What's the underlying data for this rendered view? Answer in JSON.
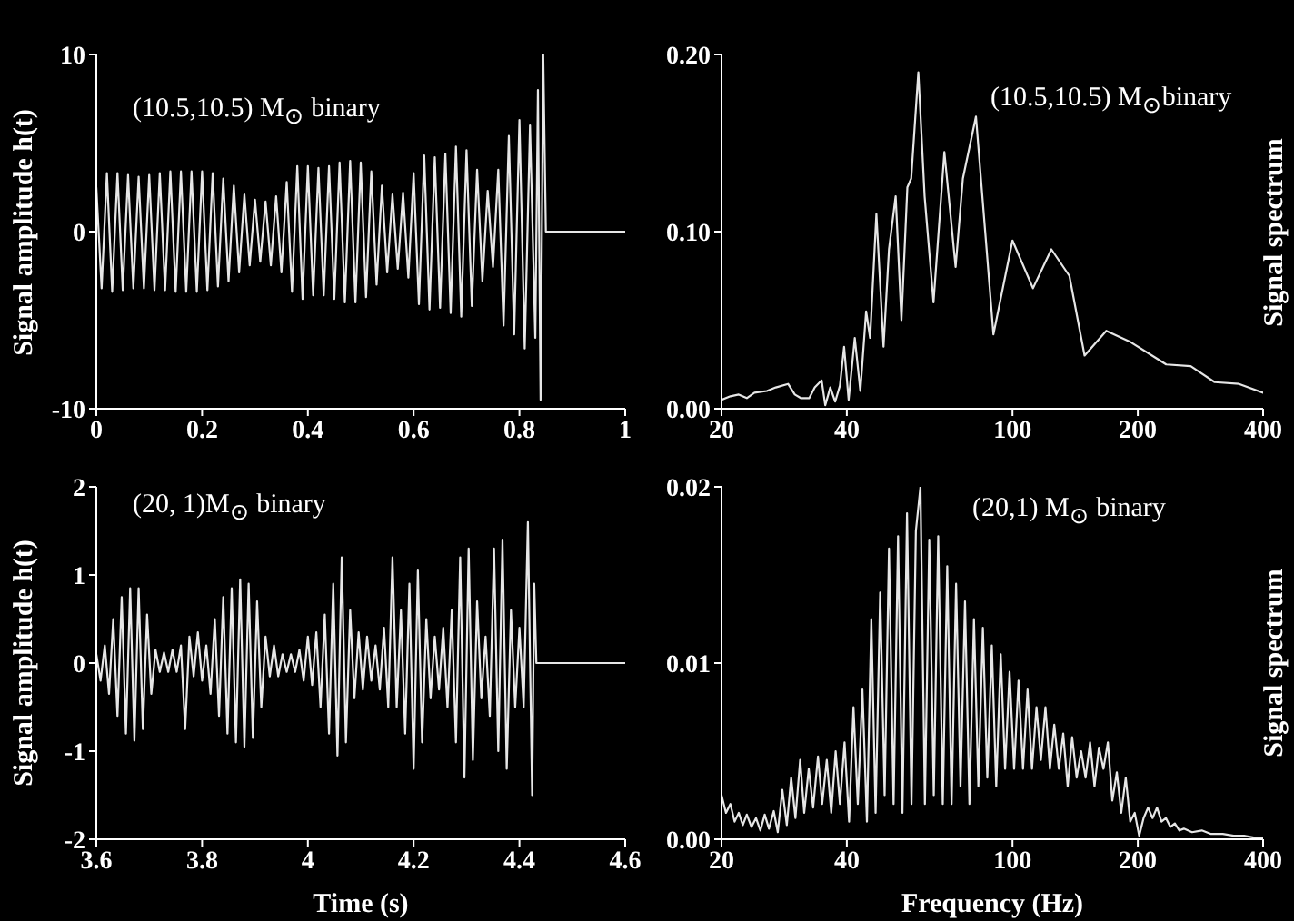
{
  "chart_data": [
    {
      "type": "line",
      "ylabel": "Signal amplitude h(t)",
      "annotations": [
        "(10.5,10.5) M$_{⊙}$ binary"
      ],
      "xlim": [
        0,
        1
      ],
      "xticks": [
        0,
        0.2,
        0.4,
        0.6,
        0.8,
        1
      ],
      "ylim": [
        -10,
        10
      ],
      "yticks": [
        -10,
        0,
        10
      ],
      "marker": "none",
      "series": [
        {
          "color": "#e6e6e6",
          "x": [
            0,
            0.01,
            0.02,
            0.03,
            0.04,
            0.05,
            0.06,
            0.07,
            0.08,
            0.09,
            0.1,
            0.11,
            0.12,
            0.13,
            0.14,
            0.15,
            0.16,
            0.17,
            0.18,
            0.19,
            0.2,
            0.21,
            0.22,
            0.23,
            0.24,
            0.25,
            0.26,
            0.27,
            0.28,
            0.29,
            0.3,
            0.31,
            0.32,
            0.33,
            0.34,
            0.35,
            0.36,
            0.37,
            0.38,
            0.39,
            0.4,
            0.41,
            0.42,
            0.43,
            0.44,
            0.45,
            0.46,
            0.47,
            0.48,
            0.49,
            0.5,
            0.51,
            0.52,
            0.53,
            0.54,
            0.55,
            0.56,
            0.57,
            0.58,
            0.59,
            0.6,
            0.61,
            0.62,
            0.63,
            0.64,
            0.65,
            0.66,
            0.67,
            0.68,
            0.69,
            0.7,
            0.71,
            0.72,
            0.73,
            0.74,
            0.75,
            0.76,
            0.77,
            0.78,
            0.79,
            0.8,
            0.81,
            0.82,
            0.83,
            0.835,
            0.84,
            0.845,
            0.85,
            1
          ],
          "values": [
            2.5,
            -3.2,
            3.3,
            -3.4,
            3.3,
            -3.3,
            3.2,
            -3.2,
            3.1,
            -3.2,
            3.2,
            -3.3,
            3.3,
            -3.3,
            3.4,
            -3.4,
            3.4,
            -3.4,
            3.4,
            -3.4,
            3.4,
            -3.3,
            3.3,
            -3.1,
            3.0,
            -2.8,
            2.6,
            -2.3,
            2.1,
            -1.9,
            1.8,
            -1.7,
            1.7,
            -1.9,
            2.0,
            -2.3,
            2.8,
            -3.4,
            3.7,
            -3.8,
            3.7,
            -3.6,
            3.6,
            -3.6,
            3.7,
            -3.8,
            3.9,
            -4.0,
            4.0,
            -4.0,
            3.9,
            -3.7,
            3.4,
            -3.0,
            2.6,
            -2.3,
            2.1,
            -2.1,
            2.2,
            -2.6,
            3.3,
            -4.1,
            4.3,
            -4.4,
            4.2,
            -4.3,
            4.4,
            -4.6,
            4.8,
            -4.8,
            4.6,
            -4.2,
            3.5,
            -2.8,
            2.3,
            -2.0,
            3.5,
            -5.3,
            5.4,
            -5.8,
            6.3,
            -6.6,
            6.0,
            -6.0,
            8.0,
            -9.5,
            10,
            0,
            0
          ]
        }
      ]
    },
    {
      "type": "line",
      "ylabel": "Signal spectrum",
      "annotations": [
        "(10.5,10.5) M$_{⊙}$binary"
      ],
      "log": "x",
      "xlim": [
        20,
        400
      ],
      "xticks": [
        20,
        40,
        100,
        200,
        400
      ],
      "ylim": [
        0,
        0.2
      ],
      "yticks": [
        {
          "value": 0,
          "label": "0.00"
        },
        {
          "value": 0.1,
          "label": "0.10"
        },
        {
          "value": 0.2,
          "label": "0.20"
        }
      ],
      "marker": "none",
      "series": [
        {
          "color": "#e6e6e6",
          "x": [
            20,
            21,
            22,
            23,
            24,
            25.7,
            27,
            28.9,
            30,
            31,
            32.5,
            33.5,
            34.8,
            35.5,
            36.5,
            37.5,
            38.5,
            39.4,
            40.4,
            41.8,
            43.1,
            44.5,
            45.5,
            47.1,
            49,
            50.5,
            52.4,
            54.1,
            55.9,
            57.1,
            59.4,
            61.5,
            64.6,
            68.6,
            73,
            76,
            81.7,
            90,
            100,
            112,
            124,
            137,
            149,
            168,
            191,
            234,
            268,
            306,
            350,
            400
          ],
          "values": [
            0.005,
            0.007,
            0.008,
            0.006,
            0.009,
            0.01,
            0.012,
            0.014,
            0.008,
            0.006,
            0.006,
            0.012,
            0.016,
            0.002,
            0.012,
            0.004,
            0.013,
            0.035,
            0.005,
            0.04,
            0.01,
            0.055,
            0.04,
            0.11,
            0.035,
            0.09,
            0.12,
            0.05,
            0.125,
            0.13,
            0.19,
            0.12,
            0.06,
            0.145,
            0.08,
            0.13,
            0.165,
            0.042,
            0.095,
            0.068,
            0.09,
            0.075,
            0.03,
            0.044,
            0.038,
            0.025,
            0.024,
            0.015,
            0.014,
            0.009
          ]
        }
      ]
    },
    {
      "type": "line",
      "ylabel": "Signal amplitude h(t)",
      "xlabel": "Time (s)",
      "annotations": [
        "(20, 1)M$_{⊙}$ binary"
      ],
      "xlim": [
        3.6,
        4.6
      ],
      "xticks": [
        3.6,
        3.8,
        4,
        4.2,
        4.4,
        4.6
      ],
      "ylim": [
        -2,
        2
      ],
      "yticks": [
        -2,
        -1,
        0,
        1,
        2
      ],
      "marker": "none",
      "series": [
        {
          "color": "#e6e6e6",
          "x": [
            3.6,
            3.608,
            3.616,
            3.624,
            3.632,
            3.64,
            3.648,
            3.656,
            3.664,
            3.672,
            3.68,
            3.688,
            3.696,
            3.704,
            3.712,
            3.72,
            3.728,
            3.736,
            3.744,
            3.752,
            3.76,
            3.768,
            3.776,
            3.784,
            3.792,
            3.8,
            3.808,
            3.816,
            3.824,
            3.832,
            3.84,
            3.848,
            3.856,
            3.864,
            3.872,
            3.88,
            3.888,
            3.896,
            3.904,
            3.912,
            3.92,
            3.928,
            3.936,
            3.944,
            3.952,
            3.96,
            3.968,
            3.976,
            3.984,
            3.992,
            4.0,
            4.008,
            4.016,
            4.024,
            4.032,
            4.04,
            4.048,
            4.056,
            4.064,
            4.072,
            4.08,
            4.088,
            4.096,
            4.104,
            4.112,
            4.12,
            4.128,
            4.136,
            4.144,
            4.152,
            4.16,
            4.168,
            4.176,
            4.184,
            4.192,
            4.2,
            4.208,
            4.216,
            4.224,
            4.232,
            4.24,
            4.248,
            4.256,
            4.264,
            4.272,
            4.28,
            4.288,
            4.296,
            4.304,
            4.312,
            4.32,
            4.328,
            4.336,
            4.344,
            4.352,
            4.36,
            4.368,
            4.376,
            4.384,
            4.392,
            4.4,
            4.408,
            4.416,
            4.424,
            4.428,
            4.432,
            4.6
          ],
          "values": [
            0.1,
            -0.2,
            0.2,
            -0.35,
            0.5,
            -0.6,
            0.75,
            -0.8,
            0.85,
            -0.88,
            0.85,
            -0.75,
            0.55,
            -0.35,
            0.15,
            -0.1,
            0.12,
            -0.1,
            0.15,
            -0.1,
            0.2,
            -0.75,
            0.3,
            -0.15,
            0.35,
            -0.2,
            0.2,
            -0.35,
            0.5,
            -0.6,
            0.75,
            -0.8,
            0.85,
            -0.9,
            0.95,
            -0.95,
            0.9,
            -0.85,
            0.7,
            -0.5,
            0.3,
            -0.15,
            0.2,
            -0.15,
            0.1,
            -0.1,
            0.1,
            -0.1,
            0.15,
            -0.2,
            0.3,
            -0.25,
            0.35,
            -0.5,
            0.55,
            -0.8,
            0.9,
            -1.05,
            1.2,
            -0.9,
            0.6,
            -0.4,
            0.35,
            -0.3,
            0.3,
            -0.2,
            0.2,
            -0.3,
            0.4,
            -0.5,
            1.2,
            -0.5,
            0.6,
            -0.8,
            0.9,
            -1.2,
            1.05,
            -0.9,
            0.5,
            -0.4,
            0.3,
            -0.3,
            0.4,
            -0.5,
            0.6,
            -0.9,
            1.2,
            -1.3,
            1.3,
            -1.1,
            0.7,
            -0.4,
            0.3,
            -0.6,
            1.3,
            -1.0,
            1.4,
            -1.2,
            0.6,
            -0.5,
            0.4,
            -0.5,
            1.6,
            -1.5,
            0.9,
            0,
            0
          ]
        }
      ]
    },
    {
      "type": "line",
      "ylabel": "Signal spectrum",
      "xlabel": "Frequency (Hz)",
      "annotations": [
        "(20,1) M$_{⊙}$ binary"
      ],
      "log": "x",
      "xlim": [
        20,
        400
      ],
      "xticks": [
        20,
        40,
        100,
        200,
        400
      ],
      "ylim": [
        0,
        0.02
      ],
      "yticks": [
        {
          "value": 0,
          "label": "0.00"
        },
        {
          "value": 0.01,
          "label": "0.01"
        },
        {
          "value": 0.02,
          "label": "0.02"
        }
      ],
      "marker": "none",
      "series": [
        {
          "color": "#e6e6e6",
          "x": [
            20,
            20.5,
            21,
            21.5,
            22,
            22.5,
            23,
            23.6,
            24.2,
            24.8,
            25.4,
            26,
            26.7,
            27.3,
            28,
            28.7,
            29.4,
            30.1,
            30.9,
            31.6,
            32.4,
            33.2,
            34.1,
            34.9,
            35.8,
            36.7,
            37.6,
            38.5,
            39.5,
            40.5,
            41.5,
            42.5,
            43.6,
            44.7,
            45.8,
            46.9,
            48.1,
            49.3,
            50.5,
            51.8,
            53.1,
            54.4,
            55.8,
            57.2,
            58.6,
            60.1,
            61.6,
            63.1,
            64.7,
            66.3,
            68,
            69.7,
            71.4,
            73.2,
            75,
            76.9,
            78.8,
            80.8,
            82.8,
            84.9,
            87,
            89.2,
            91.4,
            93.7,
            96,
            98.4,
            100.9,
            103.4,
            106,
            108.7,
            111.4,
            114.2,
            117,
            120,
            123,
            126,
            129.2,
            132.4,
            135.7,
            139.1,
            142.6,
            146.2,
            149.8,
            153.6,
            157.4,
            161.3,
            165.4,
            169.5,
            173.7,
            178.1,
            182.5,
            187.1,
            191.8,
            196.6,
            201.5,
            206.5,
            211.7,
            217,
            222.4,
            228,
            233.7,
            239.5,
            245.5,
            251.7,
            258,
            270,
            285,
            300,
            320,
            340,
            360,
            380,
            400
          ],
          "values": [
            0.0025,
            0.0015,
            0.002,
            0.001,
            0.0015,
            0.0008,
            0.0014,
            0.0007,
            0.0012,
            0.0005,
            0.0014,
            0.0006,
            0.0016,
            0.0004,
            0.0028,
            0.0008,
            0.0035,
            0.0012,
            0.0045,
            0.0015,
            0.004,
            0.0018,
            0.0047,
            0.002,
            0.0045,
            0.0015,
            0.005,
            0.002,
            0.0055,
            0.001,
            0.0075,
            0.002,
            0.0085,
            0.001,
            0.0125,
            0.0015,
            0.014,
            0.0025,
            0.0165,
            0.002,
            0.0172,
            0.0015,
            0.0185,
            0.002,
            0.0175,
            0.02,
            0.002,
            0.017,
            0.0025,
            0.0172,
            0.002,
            0.0155,
            0.002,
            0.0145,
            0.003,
            0.0135,
            0.002,
            0.0125,
            0.003,
            0.012,
            0.0035,
            0.011,
            0.003,
            0.0105,
            0.004,
            0.0095,
            0.004,
            0.009,
            0.004,
            0.0085,
            0.004,
            0.0075,
            0.0045,
            0.0075,
            0.004,
            0.0065,
            0.004,
            0.006,
            0.003,
            0.0058,
            0.0035,
            0.005,
            0.0035,
            0.0055,
            0.003,
            0.0052,
            0.004,
            0.0055,
            0.0022,
            0.0038,
            0.0015,
            0.0035,
            0.001,
            0.0015,
            0.0002,
            0.0012,
            0.0018,
            0.0012,
            0.0018,
            0.001,
            0.0012,
            0.0007,
            0.0009,
            0.0005,
            0.0006,
            0.0004,
            0.0005,
            0.0003,
            0.0003,
            0.0002,
            0.0002,
            0.0001,
            0.0001
          ]
        }
      ]
    }
  ]
}
